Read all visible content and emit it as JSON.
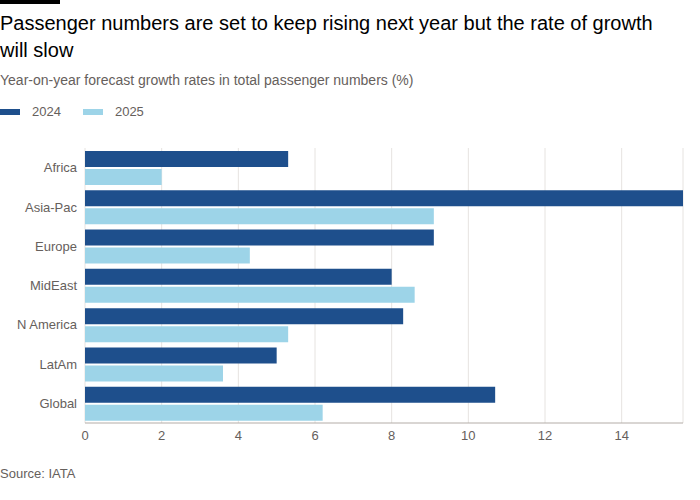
{
  "chart_data": {
    "type": "bar",
    "orientation": "horizontal",
    "title": "Passenger numbers are set to keep rising next year but the rate of growth will slow",
    "subtitle": "Year-on-year forecast growth rates in total passenger numbers (%)",
    "source": "Source: IATA",
    "categories": [
      "Africa",
      "Asia-Pac",
      "Europe",
      "MidEast",
      "N America",
      "LatAm",
      "Global"
    ],
    "series": [
      {
        "name": "2024",
        "color": "#1e4f8c",
        "values": [
          5.3,
          15.6,
          9.1,
          8.0,
          8.3,
          5.0,
          10.7
        ]
      },
      {
        "name": "2025",
        "color": "#9dd4e8",
        "values": [
          2.0,
          9.1,
          4.3,
          8.6,
          5.3,
          3.6,
          6.2
        ]
      }
    ],
    "xlim": [
      0,
      15.6
    ],
    "xticks": [
      0,
      2,
      4,
      6,
      8,
      10,
      12,
      14
    ],
    "grid": true,
    "legend": "top-left"
  }
}
